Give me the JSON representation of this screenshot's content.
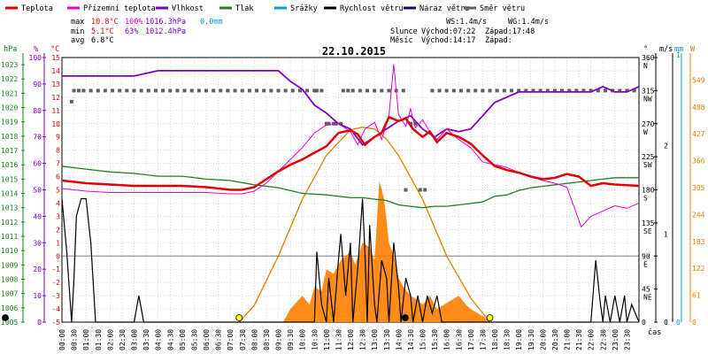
{
  "chart_data": {
    "type": "line",
    "title": "22.10.2015",
    "legend": [
      {
        "name": "Teplota",
        "color": "#e00000"
      },
      {
        "name": "Přízemní teplota",
        "color": "#e000e0"
      },
      {
        "name": "Vlhkost",
        "color": "#8000c0"
      },
      {
        "name": "Tlak",
        "color": "#208020"
      },
      {
        "name": "Srážky",
        "color": "#00a0d0"
      },
      {
        "name": "Rychlost větru",
        "color": "#000000"
      },
      {
        "name": "Náraz větru",
        "color": "#200080"
      },
      {
        "name": "Směr větru",
        "color": "#606060"
      }
    ],
    "stats": {
      "max_label": "max",
      "min_label": "min",
      "avg_label": "avg",
      "max_temp": "10.8°C",
      "max_hum": "100%",
      "max_press": "1016.3hPa",
      "max_rain": "0.0mm",
      "min_temp": "5.1°C",
      "min_hum": "63%",
      "min_press": "1012.4hPa",
      "avg_temp": "6.8°C",
      "ws": "WS:1.4m/s",
      "wg": "WG:1.4m/s",
      "sun_label": "Slunce",
      "sun_rise": "Východ:07:22",
      "sun_set": "Západ:17:48",
      "moon_label": "Měsíc",
      "moon_rise": "Východ:14:17",
      "moon_set": "Západ:"
    },
    "axis_units": {
      "press": "hPa",
      "pct": "%",
      "temp": "°C",
      "dir": "°",
      "wind": "m/s",
      "rain": "mm",
      "sun": "W",
      "time": "čas"
    },
    "press_ticks": [
      1005,
      1006,
      1007,
      1008,
      1009,
      1010,
      1011,
      1012,
      1013,
      1014,
      1015,
      1016,
      1017,
      1018,
      1019,
      1020,
      1021,
      1022,
      1023
    ],
    "pct_ticks": [
      0,
      10,
      20,
      30,
      40,
      50,
      60,
      70,
      80,
      90,
      100
    ],
    "temp_ticks": [
      -5,
      -4,
      -3,
      -2,
      -1,
      0,
      1,
      2,
      3,
      4,
      5,
      6,
      7,
      8,
      9,
      10,
      11,
      12,
      13,
      14,
      15
    ],
    "dir_ticks": [
      {
        "v": 360,
        "l": "N"
      },
      {
        "v": 315,
        "l": "NW"
      },
      {
        "v": 270,
        "l": "W"
      },
      {
        "v": 225,
        "l": "SW"
      },
      {
        "v": 180,
        "l": "S"
      },
      {
        "v": 135,
        "l": "SE"
      },
      {
        "v": 90,
        "l": "E"
      },
      {
        "v": 45,
        "l": "NE"
      },
      {
        "v": 0,
        "l": ""
      }
    ],
    "wind_ticks": [
      0,
      1,
      2
    ],
    "rain_ticks": [
      0,
      1
    ],
    "sun_ticks": [
      0,
      61,
      122,
      183,
      244,
      305,
      366,
      427,
      488,
      549
    ],
    "time_labels": [
      "00:00",
      "00:30",
      "01:00",
      "01:30",
      "02:00",
      "02:30",
      "03:00",
      "03:30",
      "04:00",
      "04:30",
      "05:00",
      "05:30",
      "06:00",
      "06:30",
      "07:00",
      "07:30",
      "08:00",
      "08:30",
      "09:00",
      "09:30",
      "10:00",
      "10:30",
      "11:00",
      "11:30",
      "12:00",
      "12:30",
      "13:00",
      "13:30",
      "14:00",
      "14:30",
      "15:00",
      "15:30",
      "16:00",
      "16:30",
      "17:00",
      "17:30",
      "18:00",
      "18:30",
      "19:00",
      "19:30",
      "20:00",
      "20:30",
      "21:00",
      "21:30",
      "22:00",
      "22:30",
      "23:00",
      "23:30"
    ],
    "xlim": [
      0,
      24
    ],
    "temperature": {
      "x": [
        0,
        1,
        2,
        3,
        4,
        5,
        6,
        7,
        7.5,
        8,
        8.5,
        9,
        9.5,
        10,
        10.5,
        11,
        11.5,
        12,
        12.3,
        12.6,
        13,
        13.3,
        13.6,
        14,
        14.3,
        14.6,
        15,
        15.3,
        15.6,
        16,
        16.5,
        17,
        17.5,
        18,
        18.5,
        19,
        19.5,
        20,
        20.5,
        21,
        21.5,
        22,
        22.5,
        23,
        24
      ],
      "y": [
        5.7,
        5.5,
        5.4,
        5.3,
        5.3,
        5.3,
        5.2,
        5.0,
        5.0,
        5.2,
        5.8,
        6.4,
        6.9,
        7.3,
        7.8,
        8.3,
        9.3,
        9.5,
        9.2,
        8.4,
        9.0,
        9.3,
        10.5,
        10.2,
        10.4,
        9.6,
        9.0,
        9.4,
        8.6,
        9.3,
        9.0,
        8.5,
        7.6,
        6.8,
        6.5,
        6.3,
        6.0,
        5.8,
        5.9,
        6.2,
        6.0,
        5.3,
        5.5,
        5.4,
        5.3
      ]
    },
    "ground_temp": {
      "x": [
        0,
        1,
        2,
        3,
        4,
        5,
        6,
        7,
        7.5,
        8,
        8.5,
        9,
        9.5,
        10,
        10.5,
        11,
        11.5,
        12,
        12.3,
        12.6,
        13,
        13.3,
        13.6,
        13.8,
        14,
        14.3,
        14.5,
        14.7,
        15,
        15.3,
        15.6,
        16,
        16.5,
        17,
        17.5,
        18,
        18.5,
        19,
        19.5,
        20,
        20.5,
        21,
        21.3,
        21.6,
        22,
        22.5,
        23,
        23.5,
        24
      ],
      "y": [
        5.1,
        4.9,
        4.8,
        4.8,
        4.8,
        4.8,
        4.8,
        4.7,
        4.7,
        4.9,
        5.5,
        6.4,
        7.3,
        8.2,
        9.3,
        9.9,
        10.0,
        9.4,
        8.4,
        9.6,
        10.1,
        8.8,
        10.6,
        14.5,
        10.7,
        9.8,
        11.1,
        9.7,
        10.3,
        9.4,
        8.8,
        9.6,
        8.8,
        8.2,
        7.1,
        6.9,
        6.7,
        6.3,
        6.0,
        5.7,
        5.5,
        5.2,
        3.7,
        2.2,
        3.0,
        3.4,
        3.8,
        3.6,
        4.0
      ]
    },
    "humidity": {
      "x": [
        0,
        1,
        2,
        3,
        3.5,
        4,
        5,
        6,
        7,
        8,
        9,
        9.5,
        10,
        10.5,
        11,
        11.5,
        12,
        12.5,
        13,
        13.5,
        14,
        14.5,
        15,
        15.5,
        16,
        16.5,
        17,
        17.5,
        18,
        18.5,
        19,
        20,
        21,
        22,
        22.5,
        23,
        23.5,
        24
      ],
      "y": [
        93,
        93,
        93,
        93,
        94,
        95,
        95,
        95,
        95,
        95,
        95,
        91,
        88,
        82,
        79,
        75,
        73,
        67,
        70,
        73,
        76,
        78,
        73,
        70,
        73,
        72,
        73,
        78,
        83,
        85,
        87,
        87,
        87,
        87,
        89,
        87,
        87,
        89
      ]
    },
    "pressure": {
      "x": [
        0,
        1,
        2,
        3,
        4,
        5,
        6,
        7,
        8,
        9,
        10,
        11,
        11.5,
        12,
        12.5,
        13,
        13.5,
        14,
        14.5,
        15,
        15.5,
        16,
        16.5,
        17,
        17.5,
        18,
        18.5,
        19,
        19.5,
        20,
        20.5,
        21,
        21.5,
        22,
        22.5,
        23,
        24
      ],
      "y": [
        1015.9,
        1015.7,
        1015.5,
        1015.4,
        1015.2,
        1015.2,
        1015.0,
        1014.9,
        1014.6,
        1014.4,
        1014.0,
        1013.9,
        1013.8,
        1013.7,
        1013.7,
        1013.6,
        1013.5,
        1013.2,
        1013.1,
        1013.0,
        1013.1,
        1013.1,
        1013.2,
        1013.3,
        1013.4,
        1013.8,
        1013.9,
        1014.2,
        1014.4,
        1014.5,
        1014.6,
        1014.7,
        1014.8,
        1014.9,
        1015.0,
        1015.1,
        1015.1
      ]
    },
    "wind_speed": {
      "x": [
        0,
        0.2,
        0.4,
        0.5,
        0.6,
        0.8,
        1.0,
        1.2,
        1.4,
        1.6,
        1.8,
        2.0,
        3.0,
        3.2,
        3.4,
        6,
        10.5,
        10.6,
        10.8,
        11.0,
        11.1,
        11.3,
        11.5,
        11.6,
        11.8,
        12.0,
        12.1,
        12.3,
        12.5,
        12.6,
        12.7,
        12.8,
        13.0,
        13.1,
        13.3,
        13.5,
        13.6,
        13.8,
        14.0,
        14.1,
        14.3,
        14.5,
        14.6,
        14.8,
        15.0,
        15.2,
        15.4,
        15.6,
        15.8,
        16.0,
        22.0,
        22.2,
        22.4,
        22.5,
        22.6,
        22.8,
        23.0,
        23.2,
        23.4,
        23.5,
        23.7,
        24
      ],
      "y": [
        1.4,
        0.8,
        0,
        0.5,
        1.2,
        1.4,
        1.4,
        0.9,
        0,
        0,
        0,
        0,
        0,
        0.3,
        0,
        0,
        0,
        0.8,
        0.2,
        0,
        0.5,
        0,
        0.7,
        1.0,
        0.3,
        0.9,
        0,
        0.6,
        1.4,
        0.8,
        0,
        1.1,
        0.2,
        0,
        0.7,
        0.5,
        0,
        0.9,
        0.4,
        0,
        0.5,
        0.3,
        0,
        0.3,
        0,
        0.3,
        0.1,
        0.3,
        0,
        0,
        0,
        0.7,
        0.2,
        0,
        0.3,
        0,
        0.3,
        0,
        0.3,
        0,
        0.2,
        0
      ]
    },
    "wind_dir": {
      "x": [
        0.4,
        0.5,
        0.7,
        0.9,
        1.2,
        1.5,
        1.8,
        2.1,
        2.4,
        2.7,
        3.0,
        3.3,
        3.6,
        3.9,
        4.2,
        4.5,
        4.8,
        5.1,
        5.4,
        5.7,
        6.0,
        6.3,
        6.6,
        6.9,
        7.2,
        7.5,
        7.8,
        8.1,
        8.4,
        8.7,
        9.0,
        9.3,
        9.6,
        9.9,
        10.2,
        10.5,
        10.6,
        10.8,
        11.0,
        11.1,
        11.3,
        11.4,
        11.6,
        11.7,
        11.9,
        12.1,
        12.4,
        12.7,
        13.0,
        13.3,
        13.6,
        13.9,
        14.2,
        14.3,
        14.5,
        14.7,
        14.9,
        15.1,
        15.4,
        15.7,
        16.0,
        16.3,
        16.6,
        16.9,
        17.2,
        17.5,
        17.8,
        18.1,
        18.4,
        18.7,
        19.0,
        19.3,
        19.6,
        19.9,
        20.2,
        20.5,
        20.8,
        21.1,
        21.4,
        21.7,
        22.0,
        22.3,
        22.6,
        22.9,
        23.2,
        23.5,
        23.8
      ],
      "y": [
        300,
        315,
        315,
        315,
        315,
        315,
        315,
        315,
        315,
        315,
        315,
        315,
        315,
        315,
        315,
        315,
        315,
        315,
        315,
        315,
        315,
        315,
        315,
        315,
        315,
        315,
        315,
        315,
        315,
        315,
        315,
        315,
        315,
        315,
        315,
        315,
        315,
        315,
        270,
        270,
        270,
        270,
        270,
        315,
        315,
        315,
        315,
        315,
        315,
        315,
        315,
        315,
        315,
        180,
        270,
        270,
        180,
        180,
        315,
        315,
        315,
        315,
        315,
        315,
        315,
        315,
        315,
        315,
        315,
        315,
        315,
        315,
        315,
        315,
        315,
        315,
        315,
        315,
        315,
        315,
        315,
        315,
        315,
        315,
        315,
        315,
        315
      ]
    },
    "solar": {
      "x": [
        7.37,
        8,
        9,
        10,
        11,
        12,
        12.5,
        13,
        13.5,
        14,
        15,
        16,
        17,
        17.8
      ],
      "y": [
        0,
        38,
        150,
        279,
        378,
        436,
        442,
        438,
        415,
        378,
        279,
        150,
        55,
        0
      ]
    },
    "solar_measured": {
      "x": [
        9.2,
        9.5,
        10,
        10.3,
        10.5,
        10.8,
        11,
        11.3,
        11.6,
        11.8,
        12,
        12.2,
        12.5,
        12.8,
        13,
        13.2,
        13.4,
        13.6,
        13.8,
        14,
        14.2,
        14.5,
        14.8,
        15,
        15.3,
        15.6,
        15.9,
        16.2,
        16.5,
        16.8,
        17,
        17.3,
        17.6,
        17.8
      ],
      "y": [
        0,
        30,
        60,
        40,
        80,
        70,
        120,
        110,
        140,
        150,
        160,
        130,
        180,
        170,
        140,
        320,
        280,
        180,
        150,
        100,
        80,
        60,
        50,
        40,
        60,
        30,
        40,
        50,
        60,
        40,
        30,
        20,
        10,
        0
      ]
    },
    "markers": [
      {
        "name": "sunrise",
        "x": 7.37,
        "color": "#ffff00"
      },
      {
        "name": "sunset",
        "x": 17.8,
        "color": "#ffff00"
      },
      {
        "name": "moonrise",
        "x": 14.28,
        "color": "#000000"
      },
      {
        "name": "day-start",
        "x": 0,
        "color": "#000000"
      }
    ]
  }
}
